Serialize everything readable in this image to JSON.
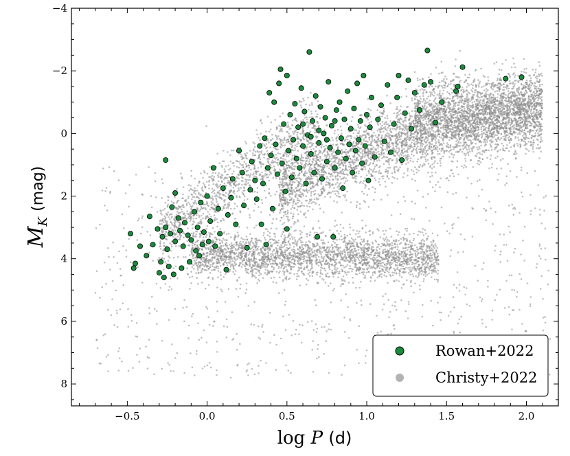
{
  "chart_data": {
    "type": "scatter",
    "xlabel": {
      "main": "log",
      "var": "P",
      "unit": "(d)"
    },
    "ylabel": {
      "main": "M",
      "sub": "K",
      "unit": "(mag)"
    },
    "xlim": [
      -0.85,
      2.2
    ],
    "ylim": [
      8.7,
      -4
    ],
    "y_inverted": true,
    "x_ticks": [
      -0.5,
      0.0,
      0.5,
      1.0,
      1.5,
      2.0
    ],
    "x_tick_labels": [
      "−0.5",
      "0.0",
      "0.5",
      "1.0",
      "1.5",
      "2.0"
    ],
    "y_ticks": [
      -4,
      -2,
      0,
      2,
      4,
      6,
      8
    ],
    "y_tick_labels": [
      "−4",
      "−2",
      "0",
      "2",
      "4",
      "6",
      "8"
    ],
    "grid": false,
    "legend_position": "bottom-right",
    "series": [
      {
        "name": "Rowan+2022",
        "color": "#1a8a3c",
        "edge_color": "#000000",
        "marker": "circle",
        "points": [
          [
            -0.48,
            3.2
          ],
          [
            -0.46,
            4.3
          ],
          [
            -0.45,
            4.15
          ],
          [
            -0.42,
            3.6
          ],
          [
            -0.38,
            3.9
          ],
          [
            -0.36,
            2.65
          ],
          [
            -0.34,
            3.55
          ],
          [
            -0.31,
            3.05
          ],
          [
            -0.3,
            4.45
          ],
          [
            -0.29,
            4.1
          ],
          [
            -0.28,
            3.3
          ],
          [
            -0.27,
            4.6
          ],
          [
            -0.26,
            3.0
          ],
          [
            -0.26,
            0.85
          ],
          [
            -0.25,
            3.7
          ],
          [
            -0.24,
            4.25
          ],
          [
            -0.23,
            3.2
          ],
          [
            -0.22,
            2.35
          ],
          [
            -0.21,
            4.5
          ],
          [
            -0.2,
            1.9
          ],
          [
            -0.2,
            3.45
          ],
          [
            -0.18,
            2.7
          ],
          [
            -0.17,
            3.1
          ],
          [
            -0.16,
            4.3
          ],
          [
            -0.15,
            3.6
          ],
          [
            -0.14,
            2.85
          ],
          [
            -0.12,
            3.25
          ],
          [
            -0.11,
            4.1
          ],
          [
            -0.1,
            3.4
          ],
          [
            -0.08,
            2.5
          ],
          [
            -0.07,
            3.75
          ],
          [
            -0.06,
            3.0
          ],
          [
            -0.05,
            3.9
          ],
          [
            -0.04,
            2.2
          ],
          [
            -0.03,
            3.55
          ],
          [
            -0.02,
            3.15
          ],
          [
            0.0,
            2.0
          ],
          [
            0.01,
            3.45
          ],
          [
            0.02,
            2.8
          ],
          [
            0.04,
            1.1
          ],
          [
            0.05,
            3.6
          ],
          [
            0.07,
            2.4
          ],
          [
            0.08,
            3.2
          ],
          [
            0.1,
            1.75
          ],
          [
            0.12,
            4.35
          ],
          [
            0.13,
            2.6
          ],
          [
            0.15,
            2.05
          ],
          [
            0.16,
            1.45
          ],
          [
            0.18,
            2.9
          ],
          [
            0.2,
            0.55
          ],
          [
            0.22,
            1.25
          ],
          [
            0.23,
            2.3
          ],
          [
            0.25,
            3.65
          ],
          [
            0.27,
            1.8
          ],
          [
            0.28,
            0.9
          ],
          [
            0.3,
            1.5
          ],
          [
            0.31,
            2.1
          ],
          [
            0.33,
            0.4
          ],
          [
            0.34,
            2.9
          ],
          [
            0.35,
            1.6
          ],
          [
            0.36,
            0.15
          ],
          [
            0.37,
            3.55
          ],
          [
            0.38,
            1.1
          ],
          [
            0.39,
            -1.3
          ],
          [
            0.4,
            0.7
          ],
          [
            0.41,
            2.4
          ],
          [
            0.42,
            -1.0
          ],
          [
            0.43,
            0.35
          ],
          [
            0.44,
            1.3
          ],
          [
            0.45,
            -1.6
          ],
          [
            0.46,
            -2.05
          ],
          [
            0.47,
            0.95
          ],
          [
            0.48,
            -0.3
          ],
          [
            0.49,
            1.85
          ],
          [
            0.5,
            3.05
          ],
          [
            0.5,
            -1.85
          ],
          [
            0.51,
            0.55
          ],
          [
            0.52,
            -0.6
          ],
          [
            0.53,
            1.4
          ],
          [
            0.54,
            0.2
          ],
          [
            0.55,
            -0.95
          ],
          [
            0.56,
            0.8
          ],
          [
            0.57,
            -0.2
          ],
          [
            0.58,
            1.1
          ],
          [
            0.59,
            -1.45
          ],
          [
            0.6,
            0.4
          ],
          [
            0.61,
            -0.7
          ],
          [
            0.62,
            1.6
          ],
          [
            0.63,
            0.05
          ],
          [
            0.64,
            -2.6
          ],
          [
            0.65,
            0.65
          ],
          [
            0.66,
            -0.4
          ],
          [
            0.67,
            1.25
          ],
          [
            0.68,
            -1.2
          ],
          [
            0.69,
            3.3
          ],
          [
            0.7,
            0.3
          ],
          [
            0.71,
            -0.85
          ],
          [
            0.72,
            1.45
          ],
          [
            0.73,
            0.0
          ],
          [
            0.74,
            -0.5
          ],
          [
            0.75,
            0.9
          ],
          [
            0.76,
            -1.65
          ],
          [
            0.77,
            0.45
          ],
          [
            0.78,
            -0.25
          ],
          [
            0.79,
            3.3
          ],
          [
            0.8,
            1.1
          ],
          [
            0.81,
            -0.75
          ],
          [
            0.82,
            0.6
          ],
          [
            0.83,
            -1.0
          ],
          [
            0.84,
            0.15
          ],
          [
            0.85,
            1.75
          ],
          [
            0.86,
            -0.45
          ],
          [
            0.87,
            0.8
          ],
          [
            0.88,
            -1.35
          ],
          [
            0.89,
            0.35
          ],
          [
            0.9,
            -0.15
          ],
          [
            0.91,
            1.25
          ],
          [
            0.92,
            -0.8
          ],
          [
            0.93,
            0.55
          ],
          [
            0.94,
            -1.6
          ],
          [
            0.95,
            0.2
          ],
          [
            0.96,
            -0.4
          ],
          [
            0.97,
            0.95
          ],
          [
            0.98,
            -1.85
          ],
          [
            0.99,
            0.4
          ],
          [
            1.0,
            -0.6
          ],
          [
            1.01,
            1.5
          ],
          [
            1.02,
            -0.2
          ],
          [
            1.03,
            -1.15
          ],
          [
            1.05,
            0.75
          ],
          [
            1.07,
            -0.45
          ],
          [
            1.09,
            -0.9
          ],
          [
            1.11,
            0.25
          ],
          [
            1.13,
            -1.55
          ],
          [
            1.15,
            0.6
          ],
          [
            1.17,
            -0.3
          ],
          [
            1.19,
            -1.15
          ],
          [
            1.2,
            -1.85
          ],
          [
            1.22,
            0.85
          ],
          [
            1.24,
            -0.65
          ],
          [
            1.26,
            -1.7
          ],
          [
            1.28,
            -0.15
          ],
          [
            1.3,
            -1.3
          ],
          [
            1.33,
            -0.75
          ],
          [
            1.36,
            -1.55
          ],
          [
            1.38,
            -2.65
          ],
          [
            1.4,
            -1.65
          ],
          [
            1.43,
            -0.35
          ],
          [
            1.47,
            -1.0
          ],
          [
            1.56,
            -1.35
          ],
          [
            1.57,
            -1.5
          ],
          [
            1.6,
            -2.12
          ],
          [
            1.87,
            -1.75
          ],
          [
            1.97,
            -1.8
          ],
          [
            0.7,
            -0.1
          ],
          [
            0.6,
            -0.3
          ],
          [
            0.8,
            -0.4
          ],
          [
            0.65,
            0.1
          ],
          [
            0.75,
            0.2
          ]
        ]
      },
      {
        "name": "Christy+2022",
        "color": "#8c8c8c",
        "marker": "circle"
      }
    ]
  }
}
